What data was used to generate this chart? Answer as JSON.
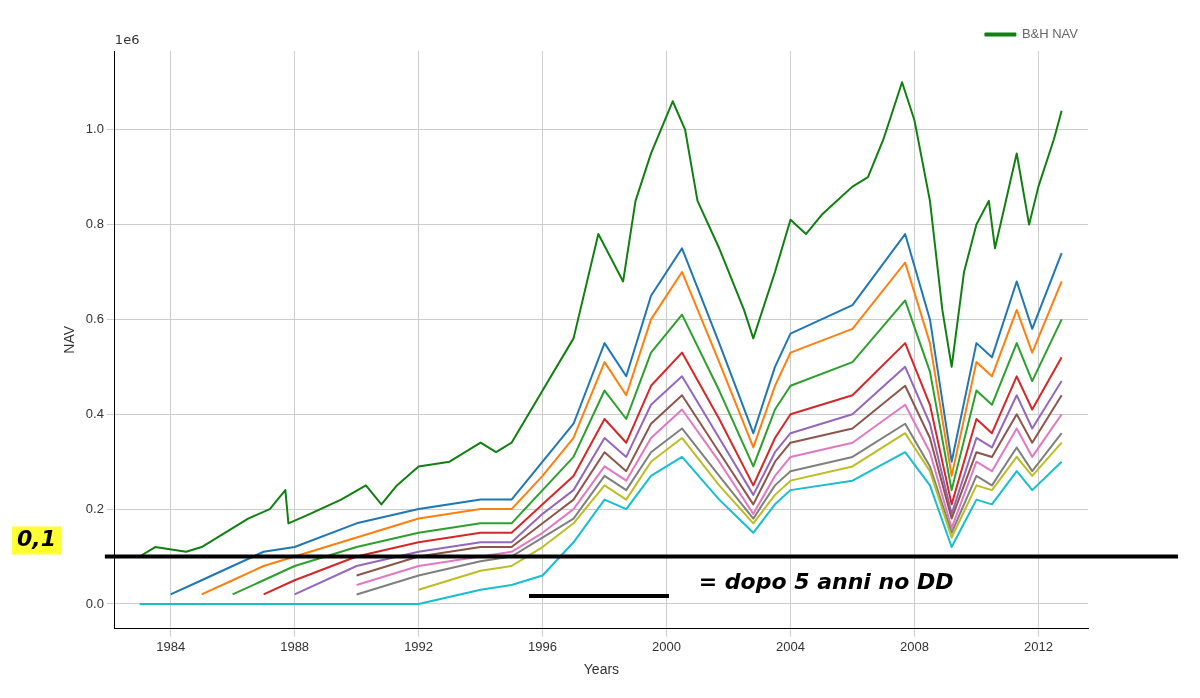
{
  "chart_data": {
    "type": "line",
    "xlabel": "Years",
    "ylabel": "NAV",
    "annotations": [
      "1e6",
      "= dopo 5 anni no DD"
    ],
    "x": [
      1983,
      1984,
      1985,
      1986,
      1987,
      1988,
      1990,
      1992,
      1994,
      1995,
      1996,
      1997,
      1998,
      1998.7,
      1999.5,
      2000.5,
      2001.7,
      2002.8,
      2003.5,
      2004,
      2006,
      2007.7,
      2008.5,
      2009.2,
      2010,
      2010.5,
      2011.3,
      2011.8,
      2012.75
    ],
    "series": [
      {
        "name": "B&H NAV",
        "color": "#108010",
        "x": [
          1983.0,
          1983.5,
          1984.5,
          1985,
          1985.5,
          1986,
          1986.5,
          1987.2,
          1987.7,
          1987.8,
          1988.5,
          1989.5,
          1990.3,
          1990.8,
          1991.3,
          1992,
          1993,
          1994,
          1994.5,
          1995,
          1996,
          1997,
          1997.8,
          1998.6,
          1999,
          1999.5,
          2000.2,
          2000.6,
          2001,
          2001.7,
          2002.5,
          2002.8,
          2003.5,
          2004,
          2004.5,
          2005,
          2005.5,
          2006,
          2006.5,
          2007,
          2007.6,
          2008,
          2008.5,
          2008.9,
          2009.2,
          2009.6,
          2010,
          2010.4,
          2010.6,
          2011.3,
          2011.7,
          2012,
          2012.5,
          2012.75
        ],
        "values": [
          0.1,
          0.12,
          0.11,
          0.12,
          0.14,
          0.16,
          0.18,
          0.2,
          0.24,
          0.17,
          0.19,
          0.22,
          0.25,
          0.21,
          0.25,
          0.29,
          0.3,
          0.34,
          0.32,
          0.34,
          0.45,
          0.56,
          0.78,
          0.68,
          0.85,
          0.95,
          1.06,
          1.0,
          0.85,
          0.75,
          0.62,
          0.56,
          0.7,
          0.81,
          0.78,
          0.82,
          0.85,
          0.88,
          0.9,
          0.98,
          1.1,
          1.02,
          0.85,
          0.62,
          0.5,
          0.7,
          0.8,
          0.85,
          0.75,
          0.95,
          0.8,
          0.88,
          0.98,
          1.04
        ]
      },
      {
        "color": "#1f77b4",
        "values": [
          null,
          0.02,
          0.05,
          0.08,
          0.11,
          0.12,
          0.17,
          0.2,
          0.22,
          0.22,
          0.3,
          0.38,
          0.55,
          0.48,
          0.65,
          0.75,
          0.55,
          0.36,
          0.5,
          0.57,
          0.63,
          0.78,
          0.6,
          0.3,
          0.55,
          0.52,
          0.68,
          0.58,
          0.74
        ]
      },
      {
        "color": "#ff7f0e",
        "values": [
          null,
          null,
          0.02,
          0.05,
          0.08,
          0.1,
          0.14,
          0.18,
          0.2,
          0.2,
          0.27,
          0.35,
          0.51,
          0.44,
          0.6,
          0.7,
          0.51,
          0.33,
          0.46,
          0.53,
          0.58,
          0.72,
          0.55,
          0.27,
          0.51,
          0.48,
          0.62,
          0.53,
          0.68
        ]
      },
      {
        "color": "#2ca02c",
        "values": [
          null,
          null,
          null,
          0.02,
          0.05,
          0.08,
          0.12,
          0.15,
          0.17,
          0.17,
          0.24,
          0.31,
          0.45,
          0.39,
          0.53,
          0.61,
          0.45,
          0.29,
          0.41,
          0.46,
          0.51,
          0.64,
          0.49,
          0.24,
          0.45,
          0.42,
          0.55,
          0.47,
          0.6
        ]
      },
      {
        "color": "#d62728",
        "values": [
          null,
          null,
          null,
          null,
          0.02,
          0.05,
          0.1,
          0.13,
          0.15,
          0.15,
          0.21,
          0.27,
          0.39,
          0.34,
          0.46,
          0.53,
          0.39,
          0.25,
          0.35,
          0.4,
          0.44,
          0.55,
          0.42,
          0.21,
          0.39,
          0.36,
          0.48,
          0.41,
          0.52
        ]
      },
      {
        "color": "#9467bd",
        "values": [
          null,
          null,
          null,
          null,
          null,
          0.02,
          0.08,
          0.11,
          0.13,
          0.13,
          0.19,
          0.24,
          0.35,
          0.31,
          0.42,
          0.48,
          0.35,
          0.23,
          0.32,
          0.36,
          0.4,
          0.5,
          0.38,
          0.19,
          0.35,
          0.33,
          0.44,
          0.37,
          0.47
        ]
      },
      {
        "color": "#8c564b",
        "values": [
          null,
          null,
          null,
          null,
          null,
          null,
          0.06,
          0.1,
          0.12,
          0.12,
          0.17,
          0.22,
          0.32,
          0.28,
          0.38,
          0.44,
          0.32,
          0.21,
          0.3,
          0.34,
          0.37,
          0.46,
          0.35,
          0.18,
          0.32,
          0.31,
          0.4,
          0.34,
          0.44
        ]
      },
      {
        "color": "#e377c2",
        "values": [
          null,
          null,
          null,
          null,
          null,
          null,
          0.04,
          0.08,
          0.1,
          0.11,
          0.15,
          0.2,
          0.29,
          0.26,
          0.35,
          0.41,
          0.3,
          0.19,
          0.27,
          0.31,
          0.34,
          0.42,
          0.32,
          0.16,
          0.3,
          0.28,
          0.37,
          0.31,
          0.4
        ]
      },
      {
        "color": "#7f7f7f",
        "values": [
          null,
          null,
          null,
          null,
          null,
          null,
          0.02,
          0.06,
          0.09,
          0.1,
          0.14,
          0.18,
          0.27,
          0.24,
          0.32,
          0.37,
          0.27,
          0.18,
          0.25,
          0.28,
          0.31,
          0.38,
          0.29,
          0.15,
          0.27,
          0.25,
          0.33,
          0.28,
          0.36
        ]
      },
      {
        "color": "#bcbd22",
        "values": [
          null,
          null,
          null,
          null,
          null,
          null,
          null,
          0.03,
          0.07,
          0.08,
          0.12,
          0.17,
          0.25,
          0.22,
          0.3,
          0.35,
          0.25,
          0.17,
          0.23,
          0.26,
          0.29,
          0.36,
          0.28,
          0.14,
          0.25,
          0.24,
          0.31,
          0.27,
          0.34
        ]
      },
      {
        "color": "#17becf",
        "values": [
          0,
          0,
          0,
          0,
          0,
          0,
          0,
          0,
          0.03,
          0.04,
          0.06,
          0.13,
          0.22,
          0.2,
          0.27,
          0.31,
          0.22,
          0.15,
          0.21,
          0.24,
          0.26,
          0.32,
          0.25,
          0.12,
          0.22,
          0.21,
          0.28,
          0.24,
          0.3
        ]
      }
    ],
    "xlim": [
      1982.2,
      2013.6
    ],
    "xticks": [
      1984,
      1988,
      1992,
      1996,
      2000,
      2004,
      2008,
      2012
    ],
    "ylim": [
      -0.052,
      1.166
    ],
    "yticks": [
      {
        "value": 0,
        "label": "0.0"
      },
      0.2,
      0.4,
      0.6,
      0.8,
      {
        "value": 1,
        "label": "1.0"
      }
    ],
    "ref_lines": [
      {
        "axis": "y",
        "value": 0.1,
        "label": "0,1",
        "color": "#000000"
      }
    ],
    "grid": true,
    "legend": "top right",
    "marker": "none",
    "line_style": "solid"
  }
}
